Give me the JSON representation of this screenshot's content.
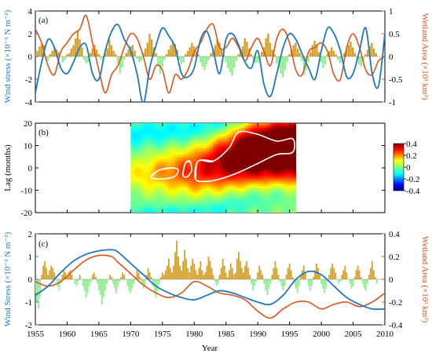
{
  "colors": {
    "wind": "#1f77c4",
    "wetland": "#e0521a",
    "bar_pos": "#d4a02a",
    "bar_neg": "#90ee90",
    "contour": "#ffffff"
  },
  "panels": {
    "a": {
      "label": "(a)"
    },
    "b": {
      "label": "(b)"
    },
    "c": {
      "label": "(c)"
    }
  },
  "xaxis": {
    "label": "Year",
    "ticks": [
      "1955",
      "1960",
      "1965",
      "1970",
      "1975",
      "1980",
      "1985",
      "1990",
      "1995",
      "2000",
      "2005",
      "2010"
    ]
  },
  "chart_data": [
    {
      "type": "line",
      "panel": "a",
      "ylabel_left": "Wind stress (×10⁻³ N m⁻²)",
      "ylabel_right": "Wetland Area (×10² km²)",
      "ylim_left": [
        -4,
        4
      ],
      "yticks_left": [
        "4",
        "2",
        "0",
        "-2",
        "-4"
      ],
      "ylim_right": [
        -1,
        1
      ],
      "yticks_right": [
        "1",
        "0.5",
        "0",
        "-0.5",
        "-1"
      ],
      "xlim": [
        1955,
        2010
      ],
      "series": [
        {
          "role": "wind",
          "x": [
            1955,
            1956,
            1957,
            1958,
            1959,
            1960,
            1961,
            1962,
            1963,
            1964,
            1965,
            1966,
            1967,
            1968,
            1969,
            1970,
            1971,
            1972,
            1973,
            1974,
            1975,
            1976,
            1977,
            1978,
            1979,
            1980,
            1981,
            1982,
            1983,
            1984,
            1985,
            1986,
            1987,
            1988,
            1989,
            1990,
            1991,
            1992,
            1993,
            1994,
            1995,
            1996,
            1997,
            1998,
            1999,
            2000,
            2001,
            2002,
            2003,
            2004,
            2005,
            2006,
            2007,
            2008,
            2009,
            2010
          ],
          "values": [
            -3.2,
            -0.5,
            1.5,
            0.8,
            -1.0,
            -1.5,
            -0.5,
            0.8,
            1.0,
            -1.5,
            -2.0,
            0.5,
            2.2,
            2.8,
            1.5,
            0.5,
            -1.5,
            -4.1,
            -1.0,
            1.0,
            2.5,
            1.8,
            0.8,
            -1.5,
            -1.8,
            -1.0,
            1.5,
            2.2,
            0.5,
            -1.5,
            1.5,
            2.0,
            1.0,
            -0.5,
            -1.0,
            0.5,
            -2.5,
            -3.5,
            -1.5,
            0.8,
            2.0,
            1.5,
            0.2,
            -1.0,
            -2.0,
            0.5,
            2.5,
            2.0,
            0.5,
            -1.8,
            -1.5,
            0.5,
            2.5,
            -1.5,
            -2.6,
            2.0
          ]
        },
        {
          "role": "wetland",
          "x": [
            1955,
            1956,
            1957,
            1958,
            1959,
            1960,
            1961,
            1962,
            1963,
            1964,
            1965,
            1966,
            1967,
            1968,
            1969,
            1970,
            1971,
            1972,
            1973,
            1974,
            1975,
            1976,
            1977,
            1978,
            1979,
            1980,
            1981,
            1982,
            1983,
            1984,
            1985,
            1986,
            1987,
            1988,
            1989,
            1990,
            1991,
            1992,
            1993,
            1994,
            1995,
            1996,
            1997,
            1998,
            1999,
            2000,
            2001,
            2002,
            2003,
            2004,
            2005,
            2006,
            2007,
            2008,
            2009,
            2010
          ],
          "values": [
            0.6,
            0.3,
            -0.2,
            -0.4,
            0.1,
            0.3,
            0.5,
            0.6,
            0.9,
            0.3,
            -0.3,
            -0.8,
            -0.4,
            -0.2,
            0.2,
            0.5,
            0.4,
            0.0,
            -0.5,
            -0.2,
            -0.3,
            -0.8,
            -0.4,
            -0.5,
            -0.3,
            0.1,
            0.3,
            0.6,
            0.7,
            0.2,
            0.2,
            0.4,
            0.2,
            -0.1,
            0.2,
            0.4,
            0.1,
            -0.2,
            0.4,
            0.6,
            0.3,
            -0.3,
            -0.4,
            0.1,
            0.2,
            0.3,
            0.1,
            -0.4,
            -0.5,
            0.2,
            0.5,
            0.2,
            -0.3,
            -0.4,
            -0.1,
            0.0
          ]
        },
        {
          "role": "wind_bars",
          "x_start": 1955,
          "x_step": 0.333,
          "values": [
            0.3,
            0.5,
            0.9,
            1.1,
            1.0,
            -0.3,
            -0.4,
            0.2,
            0.5,
            0.8,
            0.6,
            0.4,
            0.0,
            -0.5,
            -0.3,
            0.2,
            0.3,
            0.7,
            1.0,
            1.6,
            2.3,
            1.5,
            0.8,
            -0.3,
            -0.6,
            -0.5,
            0.3,
            0.7,
            1.0,
            0.6,
            0.2,
            -0.3,
            -0.2,
            0.3,
            0.7,
            1.5,
            1.0,
            0.5,
            0.2,
            -0.6,
            -1.5,
            -1.0,
            -0.3,
            0.3,
            0.6,
            0.9,
            1.0,
            0.5,
            -0.2,
            -0.5,
            -0.4,
            0.3,
            0.7,
            1.2,
            2.0,
            1.5,
            0.8,
            0.3,
            -0.8,
            -1.5,
            -0.9,
            -0.3,
            0.2,
            0.6,
            1.0,
            1.3,
            1.1,
            0.6,
            -0.3,
            -0.7,
            -0.5,
            0.2,
            0.5,
            0.8,
            1.2,
            0.9,
            0.5,
            0.2,
            -0.5,
            -0.9,
            -1.2,
            -0.7,
            -0.3,
            0.3,
            0.6,
            1.0,
            1.5,
            1.2,
            0.6,
            0.2,
            -0.5,
            -1.0,
            -1.4,
            -1.7,
            -1.0,
            -0.4,
            0.2,
            0.5,
            0.9,
            1.6,
            1.3,
            0.7,
            0.2,
            -0.3,
            -0.6,
            -0.5,
            -0.3,
            0.4,
            0.8,
            1.6,
            2.0,
            1.2,
            0.6,
            0.2,
            -0.6,
            -1.0,
            -1.5,
            -1.8,
            -1.2,
            -0.5,
            0.2,
            0.6,
            1.0,
            1.2,
            0.7,
            0.3,
            -0.4,
            -1.6,
            -1.2,
            -0.5,
            0.4,
            1.0,
            1.4,
            1.1,
            0.4,
            -0.5,
            -1.0,
            -0.7,
            0.2,
            0.5,
            0.8,
            0.5,
            0.2,
            -0.3,
            -0.6,
            -0.4,
            0.3,
            0.6,
            1.0,
            1.3,
            0.8,
            0.3,
            -0.3,
            -0.7,
            -0.9,
            -0.5,
            0.2,
            0.6,
            0.9,
            1.2,
            0.7,
            0.3
          ]
        }
      ]
    },
    {
      "type": "heatmap",
      "panel": "b",
      "ylabel": "Lag (months)",
      "ylim": [
        -20,
        20
      ],
      "yticks": [
        "20",
        "10",
        "0",
        "-10",
        "-20"
      ],
      "xlim": [
        1970,
        1996
      ],
      "colorbar_ticks": [
        "0.4",
        "0.2",
        "0",
        "-0.2",
        "-0.4"
      ],
      "colorbar_range": [
        -0.4,
        0.4
      ],
      "ridge_center": [
        {
          "year": 1970,
          "lag": -3
        },
        {
          "year": 1975,
          "lag": -2
        },
        {
          "year": 1980,
          "lag": -1
        },
        {
          "year": 1985,
          "lag": 3
        },
        {
          "year": 1988,
          "lag": 6
        },
        {
          "year": 1992,
          "lag": 8
        },
        {
          "year": 1996,
          "lag": 9
        }
      ]
    },
    {
      "type": "line",
      "panel": "c",
      "ylabel_left": "Wind Stress (×10⁻³ N m⁻²)",
      "ylabel_right": "Wetland Area (×10² km²)",
      "ylim_left": [
        -2,
        2
      ],
      "yticks_left": [
        "2",
        "1",
        "0",
        "-1",
        "-2"
      ],
      "ylim_right": [
        -0.4,
        0.4
      ],
      "yticks_right": [
        "0.4",
        "0.2",
        "0",
        "-0.2",
        "-0.4"
      ],
      "xlim": [
        1955,
        2010
      ],
      "series": [
        {
          "role": "wind",
          "x": [
            1955,
            1957,
            1959,
            1961,
            1963,
            1965,
            1967,
            1968,
            1970,
            1972,
            1974,
            1976,
            1978,
            1980,
            1982,
            1984,
            1986,
            1988,
            1990,
            1992,
            1994,
            1996,
            1998,
            2000,
            2002,
            2004,
            2006,
            2008,
            2010
          ],
          "values": [
            -0.7,
            -0.3,
            0.3,
            0.8,
            1.1,
            1.25,
            1.3,
            1.2,
            0.7,
            0.2,
            -0.3,
            -0.6,
            -0.8,
            -0.9,
            -0.7,
            -0.5,
            -0.6,
            -0.8,
            -1.0,
            -1.1,
            -0.7,
            0.0,
            0.35,
            0.2,
            -0.3,
            -0.8,
            -1.1,
            -1.3,
            -1.3
          ]
        },
        {
          "role": "wetland",
          "x": [
            1955,
            1957,
            1959,
            1961,
            1963,
            1965,
            1967,
            1968,
            1970,
            1972,
            1974,
            1976,
            1978,
            1980,
            1982,
            1984,
            1986,
            1988,
            1990,
            1992,
            1994,
            1996,
            1998,
            2000,
            2002,
            2004,
            2006,
            2008,
            2010
          ],
          "values": [
            -0.02,
            -0.06,
            -0.02,
            0.08,
            0.17,
            0.21,
            0.2,
            0.15,
            0.05,
            -0.05,
            -0.12,
            -0.16,
            -0.12,
            -0.02,
            -0.06,
            -0.12,
            -0.14,
            -0.18,
            -0.28,
            -0.34,
            -0.26,
            -0.2,
            -0.2,
            -0.26,
            -0.22,
            -0.2,
            -0.24,
            -0.2,
            -0.12
          ]
        },
        {
          "role": "wind_bars",
          "x_start": 1955,
          "x_step": 0.25,
          "values": [
            -0.6,
            -1.0,
            -1.3,
            -0.8,
            0.2,
            0.6,
            0.8,
            0.5,
            0.2,
            0.4,
            0.6,
            0.5,
            0.3,
            0.0,
            -0.3,
            -0.5,
            -0.2,
            0.2,
            0.4,
            0.3,
            0.1,
            0.3,
            0.4,
            0.2,
            0.0,
            -0.2,
            -0.3,
            -0.1,
            0.2,
            0.0,
            -0.3,
            -0.5,
            -0.8,
            -0.6,
            -0.3,
            -0.1,
            0.2,
            0.3,
            0.1,
            -0.2,
            -0.5,
            -0.7,
            -1.1,
            -0.8,
            -0.5,
            -0.2,
            0.0,
            0.2,
            0.1,
            -0.2,
            -0.4,
            -0.6,
            -0.3,
            -0.1,
            0.1,
            0.3,
            0.2,
            0.0,
            -0.3,
            -0.5,
            -0.6,
            -0.4,
            -0.2,
            0.1,
            0.4,
            0.3,
            0.1,
            -0.2,
            -0.4,
            -0.3,
            0.2,
            0.5,
            0.3,
            0.1,
            -0.3,
            -0.6,
            -0.8,
            -0.5,
            -0.2,
            0.1,
            0.3,
            0.2,
            0.4,
            0.6,
            0.9,
            0.5,
            0.3,
            0.6,
            1.2,
            1.7,
            1.0,
            0.6,
            0.4,
            0.8,
            1.3,
            0.9,
            0.5,
            0.3,
            0.6,
            0.9,
            0.7,
            0.4,
            0.2,
            0.5,
            0.8,
            0.4,
            0.2,
            0.3,
            0.6,
            1.0,
            0.8,
            0.5,
            0.2,
            -0.1,
            -0.3,
            -0.2,
            0.2,
            0.5,
            0.9,
            0.6,
            0.3,
            0.1,
            0.4,
            0.7,
            0.5,
            0.2,
            0.3,
            0.9,
            1.2,
            0.8,
            0.5,
            0.3,
            0.6,
            0.8,
            0.5,
            0.2,
            -0.2,
            -0.5,
            -0.3,
            -0.1,
            0.3,
            0.6,
            0.4,
            0.2,
            -0.2,
            -0.5,
            -0.7,
            -0.4,
            -0.2,
            0.2,
            0.5,
            0.8,
            0.5,
            0.2,
            -0.1,
            -0.3,
            -0.5,
            -0.3,
            0.2,
            0.5,
            0.7,
            0.4,
            0.1,
            -0.2,
            -0.4,
            -0.6,
            -0.3,
            0.2,
            0.4,
            0.6,
            0.3,
            0.0,
            -0.3,
            -0.5,
            -0.3,
            0.1,
            0.4,
            0.7,
            0.5,
            0.2,
            -0.2,
            -0.4,
            -0.6,
            -0.4,
            -0.1,
            0.2,
            0.5,
            0.7,
            0.5,
            0.3,
            0.0,
            -0.2,
            -0.1,
            0.2,
            0.4,
            0.6,
            0.3,
            0.0,
            -0.2,
            -0.4,
            -0.3,
            0.1,
            0.4,
            0.6,
            0.4,
            0.1,
            -0.2,
            -0.4,
            -0.5,
            -0.2,
            0.2,
            0.5,
            0.8,
            0.4,
            0.1,
            -0.2
          ]
        }
      ]
    }
  ]
}
